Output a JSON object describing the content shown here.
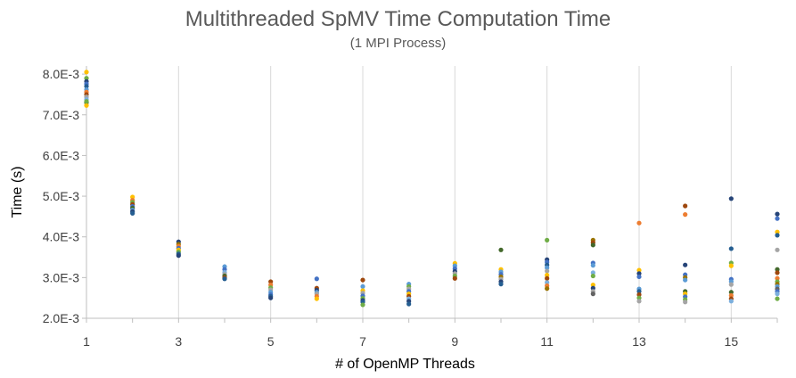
{
  "chart_data": {
    "type": "scatter",
    "title": "Multithreaded SpMV Time Computation Time",
    "subtitle": "(1 MPI Process)",
    "xlabel": "# of OpenMP Threads",
    "ylabel": "Time (s)",
    "xlim": [
      1,
      16
    ],
    "ylim": [
      0.002,
      0.0082
    ],
    "x_ticks": [
      1,
      3,
      5,
      7,
      9,
      11,
      13,
      15
    ],
    "y_ticks": [
      {
        "value": 0.002,
        "label": "2.0E-3"
      },
      {
        "value": 0.003,
        "label": "3.0E-3"
      },
      {
        "value": 0.004,
        "label": "4.0E-3"
      },
      {
        "value": 0.005,
        "label": "5.0E-3"
      },
      {
        "value": 0.006,
        "label": "6.0E-3"
      },
      {
        "value": 0.007,
        "label": "7.0E-3"
      },
      {
        "value": 0.008,
        "label": "8.0E-3"
      }
    ],
    "grid": "vertical",
    "legend": "none",
    "palette": [
      "#4472C4",
      "#ED7D31",
      "#A5A5A5",
      "#FFC000",
      "#5B9BD5",
      "#70AD47",
      "#264478",
      "#9E480E",
      "#636363",
      "#997300",
      "#255E91",
      "#43682B",
      "#698ED0",
      "#F1975A",
      "#B7B7B7",
      "#FFCD33",
      "#7CAFDD",
      "#8CC168",
      "#2F5597",
      "#C55A11"
    ],
    "points": [
      {
        "x": 1,
        "y": 0.00805,
        "c": 3
      },
      {
        "x": 1,
        "y": 0.0079,
        "c": 5
      },
      {
        "x": 1,
        "y": 0.00782,
        "c": 6
      },
      {
        "x": 1,
        "y": 0.00776,
        "c": 0
      },
      {
        "x": 1,
        "y": 0.0077,
        "c": 10
      },
      {
        "x": 1,
        "y": 0.00762,
        "c": 4
      },
      {
        "x": 1,
        "y": 0.00756,
        "c": 1
      },
      {
        "x": 1,
        "y": 0.0075,
        "c": 7
      },
      {
        "x": 1,
        "y": 0.00744,
        "c": 2
      },
      {
        "x": 1,
        "y": 0.00738,
        "c": 16
      },
      {
        "x": 1,
        "y": 0.0073,
        "c": 11
      },
      {
        "x": 1,
        "y": 0.00723,
        "c": 3
      },
      {
        "x": 1,
        "y": 0.00733,
        "c": 5
      },
      {
        "x": 2,
        "y": 0.00498,
        "c": 3
      },
      {
        "x": 2,
        "y": 0.0049,
        "c": 1
      },
      {
        "x": 2,
        "y": 0.00485,
        "c": 5
      },
      {
        "x": 2,
        "y": 0.0048,
        "c": 7
      },
      {
        "x": 2,
        "y": 0.00475,
        "c": 0
      },
      {
        "x": 2,
        "y": 0.00471,
        "c": 11
      },
      {
        "x": 2,
        "y": 0.00466,
        "c": 4
      },
      {
        "x": 2,
        "y": 0.00462,
        "c": 6
      },
      {
        "x": 2,
        "y": 0.00458,
        "c": 10
      },
      {
        "x": 3,
        "y": 0.00388,
        "c": 6
      },
      {
        "x": 3,
        "y": 0.00382,
        "c": 9
      },
      {
        "x": 3,
        "y": 0.00377,
        "c": 1
      },
      {
        "x": 3,
        "y": 0.00372,
        "c": 0
      },
      {
        "x": 3,
        "y": 0.00368,
        "c": 3
      },
      {
        "x": 3,
        "y": 0.00363,
        "c": 5
      },
      {
        "x": 3,
        "y": 0.00358,
        "c": 10
      },
      {
        "x": 3,
        "y": 0.00354,
        "c": 6
      },
      {
        "x": 4,
        "y": 0.00327,
        "c": 4
      },
      {
        "x": 4,
        "y": 0.0032,
        "c": 0
      },
      {
        "x": 4,
        "y": 0.00313,
        "c": 16
      },
      {
        "x": 4,
        "y": 0.00308,
        "c": 2
      },
      {
        "x": 4,
        "y": 0.00304,
        "c": 11
      },
      {
        "x": 4,
        "y": 0.003,
        "c": 7
      },
      {
        "x": 4,
        "y": 0.00297,
        "c": 10
      },
      {
        "x": 5,
        "y": 0.0029,
        "c": 7
      },
      {
        "x": 5,
        "y": 0.00282,
        "c": 1
      },
      {
        "x": 5,
        "y": 0.00275,
        "c": 5
      },
      {
        "x": 5,
        "y": 0.0027,
        "c": 2
      },
      {
        "x": 5,
        "y": 0.00264,
        "c": 4
      },
      {
        "x": 5,
        "y": 0.00258,
        "c": 0
      },
      {
        "x": 5,
        "y": 0.00254,
        "c": 10
      },
      {
        "x": 5,
        "y": 0.0025,
        "c": 6
      },
      {
        "x": 6,
        "y": 0.00297,
        "c": 0
      },
      {
        "x": 6,
        "y": 0.00274,
        "c": 7
      },
      {
        "x": 6,
        "y": 0.00269,
        "c": 6
      },
      {
        "x": 6,
        "y": 0.00264,
        "c": 4
      },
      {
        "x": 6,
        "y": 0.0026,
        "c": 2
      },
      {
        "x": 6,
        "y": 0.00254,
        "c": 1
      },
      {
        "x": 6,
        "y": 0.00248,
        "c": 3
      },
      {
        "x": 7,
        "y": 0.00294,
        "c": 7
      },
      {
        "x": 7,
        "y": 0.00278,
        "c": 4
      },
      {
        "x": 7,
        "y": 0.00268,
        "c": 3
      },
      {
        "x": 7,
        "y": 0.00262,
        "c": 2
      },
      {
        "x": 7,
        "y": 0.00255,
        "c": 0
      },
      {
        "x": 7,
        "y": 0.00249,
        "c": 5
      },
      {
        "x": 7,
        "y": 0.00244,
        "c": 6
      },
      {
        "x": 7,
        "y": 0.0024,
        "c": 10
      },
      {
        "x": 7,
        "y": 0.00233,
        "c": 5
      },
      {
        "x": 8,
        "y": 0.00284,
        "c": 4
      },
      {
        "x": 8,
        "y": 0.00278,
        "c": 5
      },
      {
        "x": 8,
        "y": 0.00272,
        "c": 2
      },
      {
        "x": 8,
        "y": 0.00266,
        "c": 0
      },
      {
        "x": 8,
        "y": 0.0026,
        "c": 3
      },
      {
        "x": 8,
        "y": 0.00254,
        "c": 7
      },
      {
        "x": 8,
        "y": 0.00248,
        "c": 16
      },
      {
        "x": 8,
        "y": 0.00242,
        "c": 6
      },
      {
        "x": 8,
        "y": 0.00235,
        "c": 10
      },
      {
        "x": 9,
        "y": 0.00335,
        "c": 3
      },
      {
        "x": 9,
        "y": 0.00329,
        "c": 4
      },
      {
        "x": 9,
        "y": 0.00322,
        "c": 0
      },
      {
        "x": 9,
        "y": 0.00315,
        "c": 6
      },
      {
        "x": 9,
        "y": 0.0031,
        "c": 2
      },
      {
        "x": 9,
        "y": 0.00304,
        "c": 5
      },
      {
        "x": 9,
        "y": 0.00298,
        "c": 7
      },
      {
        "x": 10,
        "y": 0.00368,
        "c": 11
      },
      {
        "x": 10,
        "y": 0.0032,
        "c": 3
      },
      {
        "x": 10,
        "y": 0.00314,
        "c": 4
      },
      {
        "x": 10,
        "y": 0.00308,
        "c": 0
      },
      {
        "x": 10,
        "y": 0.00302,
        "c": 9
      },
      {
        "x": 10,
        "y": 0.00296,
        "c": 2
      },
      {
        "x": 10,
        "y": 0.0029,
        "c": 6
      },
      {
        "x": 10,
        "y": 0.00284,
        "c": 10
      },
      {
        "x": 11,
        "y": 0.00392,
        "c": 5
      },
      {
        "x": 11,
        "y": 0.00344,
        "c": 6
      },
      {
        "x": 11,
        "y": 0.00338,
        "c": 0
      },
      {
        "x": 11,
        "y": 0.00331,
        "c": 10
      },
      {
        "x": 11,
        "y": 0.00324,
        "c": 4
      },
      {
        "x": 11,
        "y": 0.00316,
        "c": 2
      },
      {
        "x": 11,
        "y": 0.00306,
        "c": 3
      },
      {
        "x": 11,
        "y": 0.00298,
        "c": 7
      },
      {
        "x": 11,
        "y": 0.00288,
        "c": 16
      },
      {
        "x": 11,
        "y": 0.0028,
        "c": 1
      },
      {
        "x": 11,
        "y": 0.00273,
        "c": 9
      },
      {
        "x": 12,
        "y": 0.00392,
        "c": 9
      },
      {
        "x": 12,
        "y": 0.00386,
        "c": 7
      },
      {
        "x": 12,
        "y": 0.0038,
        "c": 11
      },
      {
        "x": 12,
        "y": 0.00336,
        "c": 0
      },
      {
        "x": 12,
        "y": 0.0033,
        "c": 4
      },
      {
        "x": 12,
        "y": 0.00312,
        "c": 16
      },
      {
        "x": 12,
        "y": 0.00304,
        "c": 5
      },
      {
        "x": 12,
        "y": 0.00282,
        "c": 3
      },
      {
        "x": 12,
        "y": 0.00274,
        "c": 6
      },
      {
        "x": 12,
        "y": 0.00266,
        "c": 2
      },
      {
        "x": 12,
        "y": 0.0026,
        "c": 8
      },
      {
        "x": 13,
        "y": 0.00434,
        "c": 1
      },
      {
        "x": 13,
        "y": 0.00318,
        "c": 3
      },
      {
        "x": 13,
        "y": 0.0031,
        "c": 6
      },
      {
        "x": 13,
        "y": 0.00302,
        "c": 0
      },
      {
        "x": 13,
        "y": 0.00272,
        "c": 4
      },
      {
        "x": 13,
        "y": 0.00266,
        "c": 10
      },
      {
        "x": 13,
        "y": 0.00258,
        "c": 7
      },
      {
        "x": 13,
        "y": 0.0025,
        "c": 5
      },
      {
        "x": 13,
        "y": 0.00242,
        "c": 2
      },
      {
        "x": 14,
        "y": 0.00476,
        "c": 7
      },
      {
        "x": 14,
        "y": 0.00455,
        "c": 1
      },
      {
        "x": 14,
        "y": 0.00331,
        "c": 6
      },
      {
        "x": 14,
        "y": 0.00307,
        "c": 0
      },
      {
        "x": 14,
        "y": 0.003,
        "c": 9
      },
      {
        "x": 14,
        "y": 0.00294,
        "c": 4
      },
      {
        "x": 14,
        "y": 0.00266,
        "c": 11
      },
      {
        "x": 14,
        "y": 0.0026,
        "c": 3
      },
      {
        "x": 14,
        "y": 0.00253,
        "c": 0
      },
      {
        "x": 14,
        "y": 0.00246,
        "c": 5
      },
      {
        "x": 14,
        "y": 0.0024,
        "c": 2
      },
      {
        "x": 15,
        "y": 0.00494,
        "c": 6
      },
      {
        "x": 15,
        "y": 0.00371,
        "c": 10
      },
      {
        "x": 15,
        "y": 0.00336,
        "c": 5
      },
      {
        "x": 15,
        "y": 0.00329,
        "c": 3
      },
      {
        "x": 15,
        "y": 0.00296,
        "c": 0
      },
      {
        "x": 15,
        "y": 0.0029,
        "c": 4
      },
      {
        "x": 15,
        "y": 0.00283,
        "c": 2
      },
      {
        "x": 15,
        "y": 0.00264,
        "c": 11
      },
      {
        "x": 15,
        "y": 0.00256,
        "c": 1
      },
      {
        "x": 15,
        "y": 0.00248,
        "c": 7
      },
      {
        "x": 15,
        "y": 0.00242,
        "c": 16
      },
      {
        "x": 16,
        "y": 0.00456,
        "c": 6
      },
      {
        "x": 16,
        "y": 0.00445,
        "c": 0
      },
      {
        "x": 16,
        "y": 0.00412,
        "c": 3
      },
      {
        "x": 16,
        "y": 0.00404,
        "c": 10
      },
      {
        "x": 16,
        "y": 0.00368,
        "c": 2
      },
      {
        "x": 16,
        "y": 0.0032,
        "c": 11
      },
      {
        "x": 16,
        "y": 0.00312,
        "c": 7
      },
      {
        "x": 16,
        "y": 0.00298,
        "c": 1
      },
      {
        "x": 16,
        "y": 0.0029,
        "c": 5
      },
      {
        "x": 16,
        "y": 0.00284,
        "c": 9
      },
      {
        "x": 16,
        "y": 0.00278,
        "c": 4
      },
      {
        "x": 16,
        "y": 0.00272,
        "c": 8
      },
      {
        "x": 16,
        "y": 0.00266,
        "c": 0
      },
      {
        "x": 16,
        "y": 0.0026,
        "c": 16
      },
      {
        "x": 16,
        "y": 0.00248,
        "c": 5
      }
    ]
  }
}
